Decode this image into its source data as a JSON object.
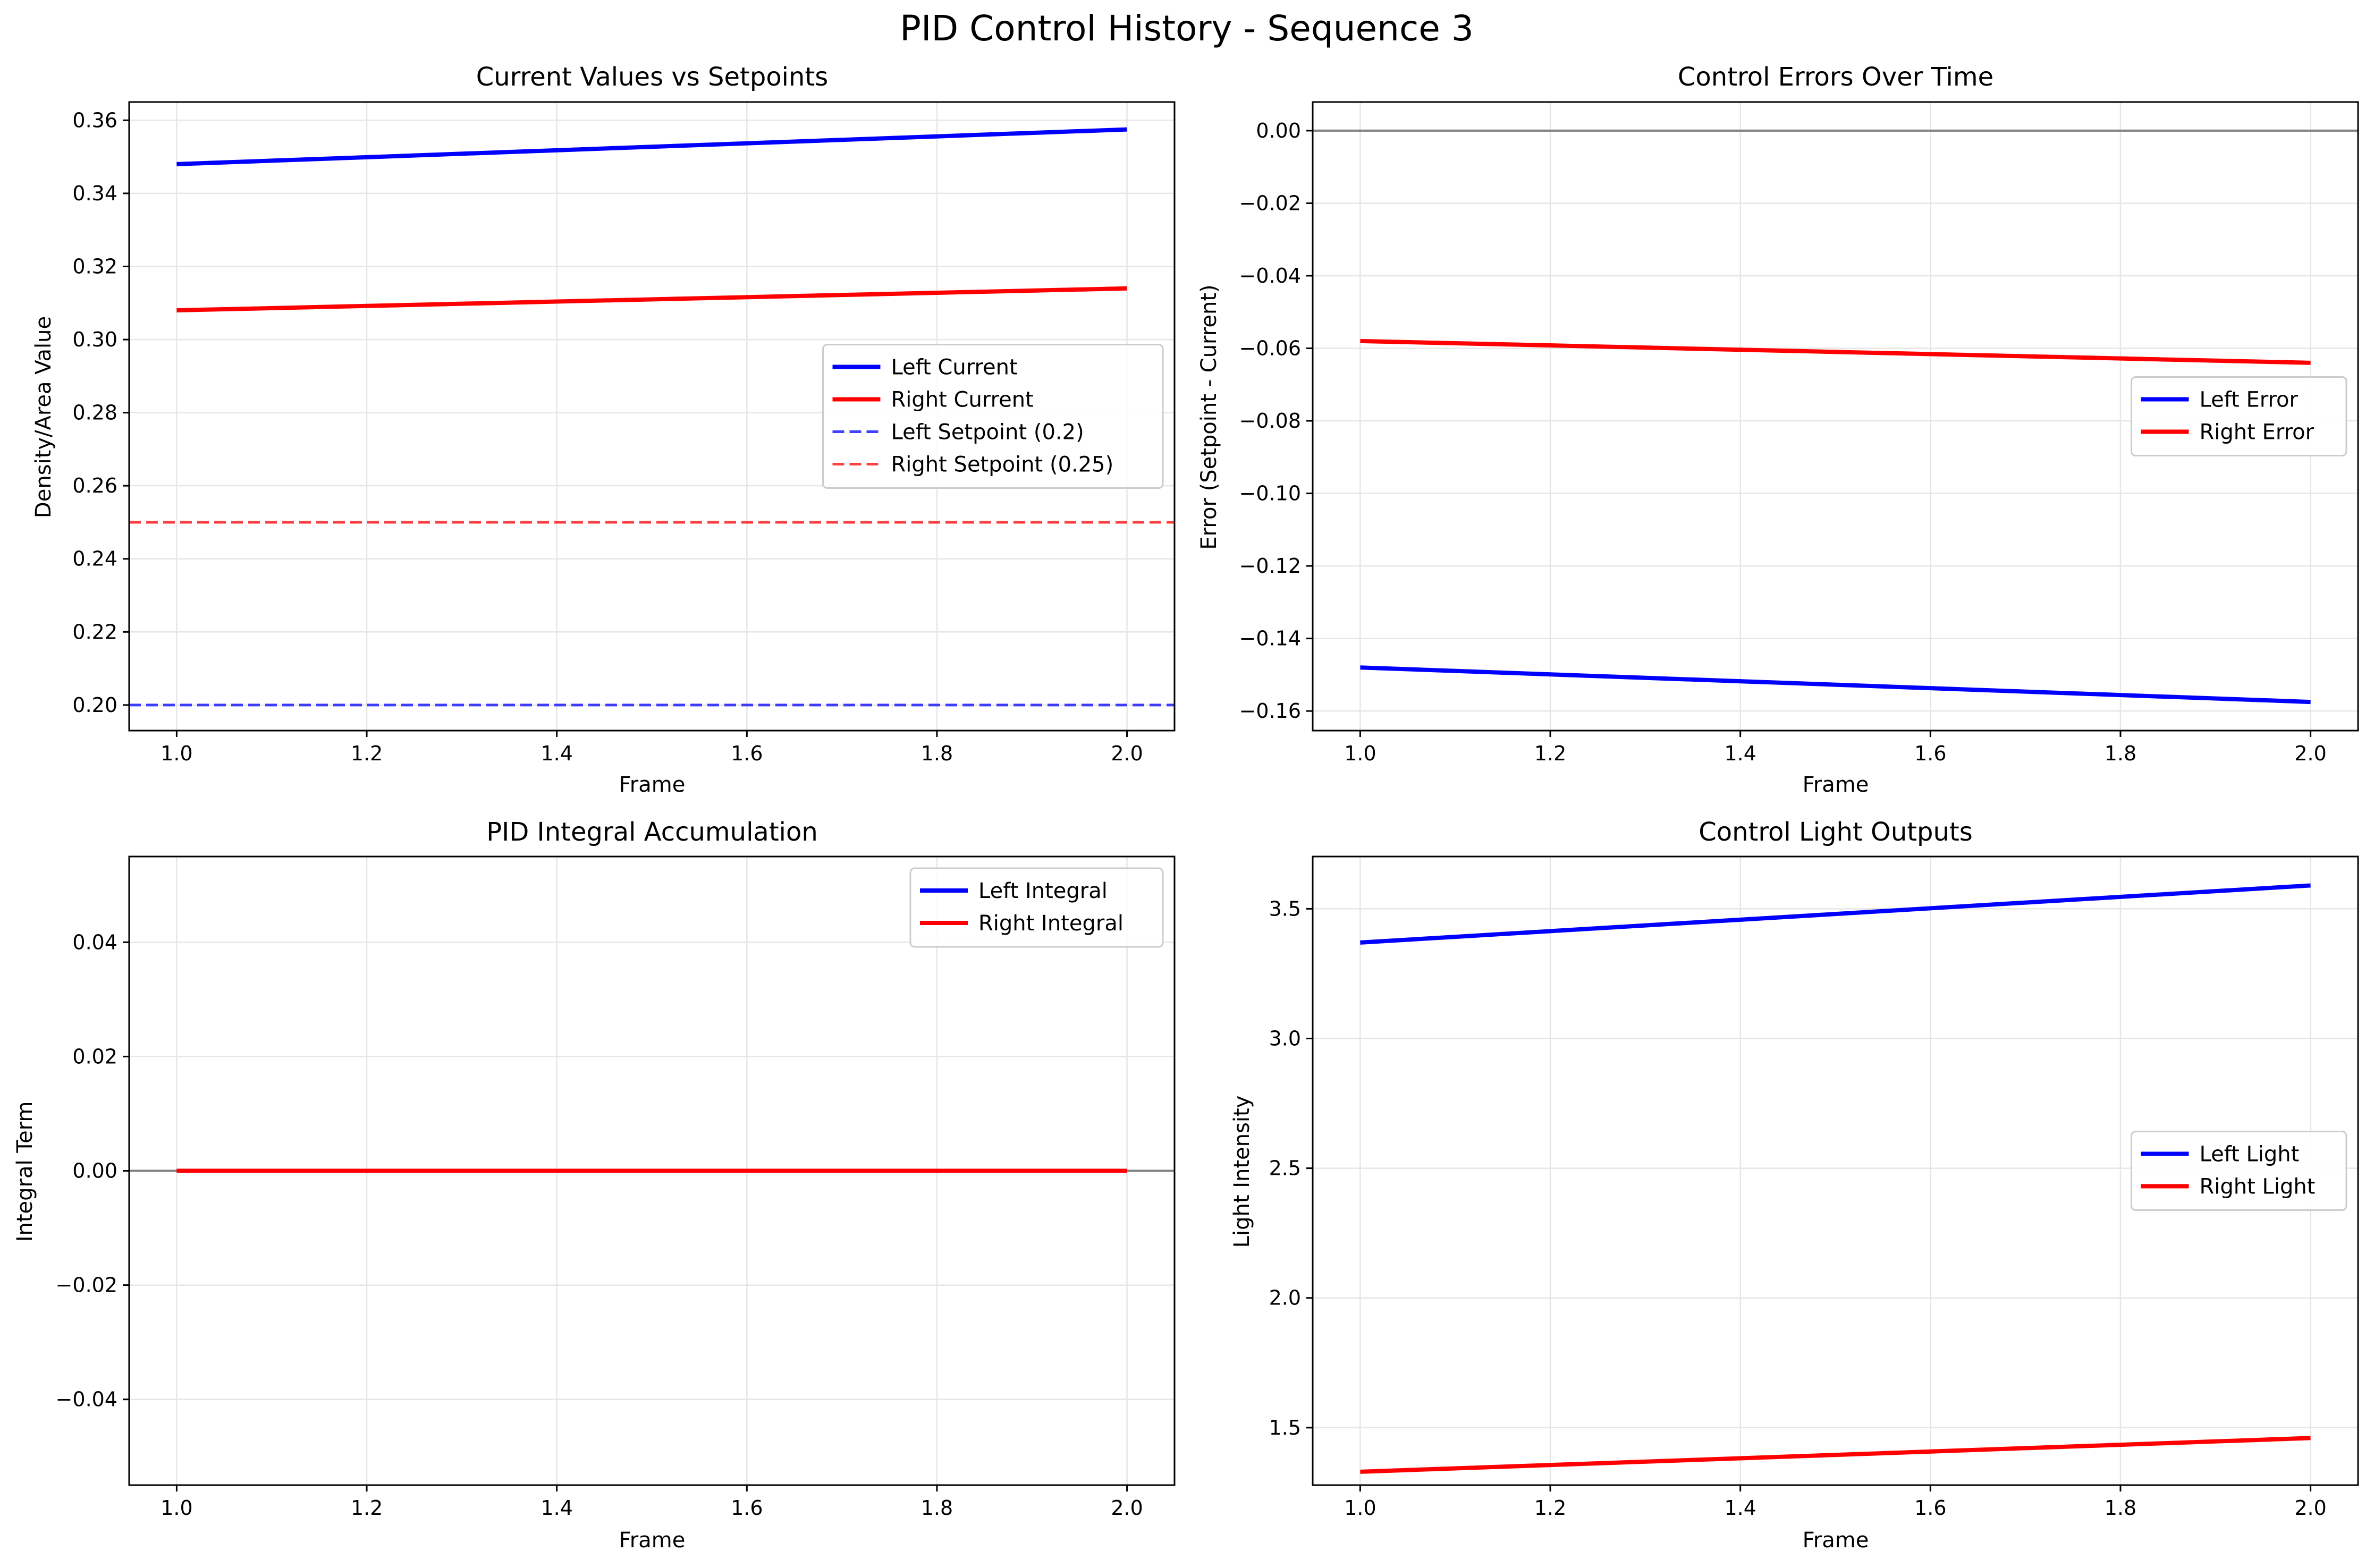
{
  "figure": {
    "title": "PID Control History - Sequence 3"
  },
  "colors": {
    "blue": "#0000ff",
    "red": "#ff0000",
    "zero_line": "#808080",
    "grid": "#e6e6e6"
  },
  "chart_data": [
    {
      "type": "line",
      "title": "Current Values vs Setpoints",
      "xlabel": "Frame",
      "ylabel": "Density/Area Value",
      "xlim": [
        0.95,
        2.05
      ],
      "ylim": [
        0.193,
        0.365
      ],
      "xticks": [
        1.0,
        1.2,
        1.4,
        1.6,
        1.8,
        2.0
      ],
      "yticks": [
        0.2,
        0.22,
        0.24,
        0.26,
        0.28,
        0.3,
        0.32,
        0.34,
        0.36
      ],
      "tick_decimals": [
        1,
        2
      ],
      "grid": true,
      "legend": "center-right",
      "series": [
        {
          "name": "Left Current",
          "color": "#0000ff",
          "style": "solid",
          "x": [
            1.0,
            2.0
          ],
          "y": [
            0.348,
            0.3575
          ]
        },
        {
          "name": "Right Current",
          "color": "#ff0000",
          "style": "solid",
          "x": [
            1.0,
            2.0
          ],
          "y": [
            0.308,
            0.314
          ]
        },
        {
          "name": "Left Setpoint (0.2)",
          "color": "#0000ff",
          "style": "dashed",
          "y_const": 0.2
        },
        {
          "name": "Right Setpoint (0.25)",
          "color": "#ff0000",
          "style": "dashed",
          "y_const": 0.25
        }
      ]
    },
    {
      "type": "line",
      "title": "Control Errors Over Time",
      "xlabel": "Frame",
      "ylabel": "Error (Setpoint - Current)",
      "xlim": [
        0.95,
        2.05
      ],
      "ylim": [
        -0.1654,
        0.0079
      ],
      "xticks": [
        1.0,
        1.2,
        1.4,
        1.6,
        1.8,
        2.0
      ],
      "yticks": [
        0.0,
        -0.02,
        -0.04,
        -0.06,
        -0.08,
        -0.1,
        -0.12,
        -0.14,
        -0.16
      ],
      "tick_decimals": [
        1,
        2
      ],
      "grid": true,
      "zero_line": true,
      "legend": "center-right",
      "series": [
        {
          "name": "Left Error",
          "color": "#0000ff",
          "style": "solid",
          "x": [
            1.0,
            2.0
          ],
          "y": [
            -0.148,
            -0.1575
          ]
        },
        {
          "name": "Right Error",
          "color": "#ff0000",
          "style": "solid",
          "x": [
            1.0,
            2.0
          ],
          "y": [
            -0.058,
            -0.064
          ]
        }
      ]
    },
    {
      "type": "line",
      "title": "PID Integral Accumulation",
      "xlabel": "Frame",
      "ylabel": "Integral Term",
      "xlim": [
        0.95,
        2.05
      ],
      "ylim": [
        -0.055,
        0.055
      ],
      "xticks": [
        1.0,
        1.2,
        1.4,
        1.6,
        1.8,
        2.0
      ],
      "yticks": [
        -0.04,
        -0.02,
        0.0,
        0.02,
        0.04
      ],
      "tick_decimals": [
        1,
        2
      ],
      "grid": true,
      "zero_line": true,
      "legend": "top-right",
      "series": [
        {
          "name": "Left Integral",
          "color": "#0000ff",
          "style": "solid",
          "x": [
            1.0,
            2.0
          ],
          "y": [
            0.0,
            0.0
          ]
        },
        {
          "name": "Right Integral",
          "color": "#ff0000",
          "style": "solid",
          "x": [
            1.0,
            2.0
          ],
          "y": [
            0.0,
            0.0
          ]
        }
      ]
    },
    {
      "type": "line",
      "title": "Control Light Outputs",
      "xlabel": "Frame",
      "ylabel": "Light Intensity",
      "xlim": [
        0.95,
        2.05
      ],
      "ylim": [
        1.2785,
        3.7015
      ],
      "xticks": [
        1.0,
        1.2,
        1.4,
        1.6,
        1.8,
        2.0
      ],
      "yticks": [
        1.5,
        2.0,
        2.5,
        3.0,
        3.5
      ],
      "tick_decimals": [
        1,
        1
      ],
      "grid": true,
      "legend": "center-right",
      "series": [
        {
          "name": "Left Light",
          "color": "#0000ff",
          "style": "solid",
          "x": [
            1.0,
            2.0
          ],
          "y": [
            3.37,
            3.59
          ]
        },
        {
          "name": "Right Light",
          "color": "#ff0000",
          "style": "solid",
          "x": [
            1.0,
            2.0
          ],
          "y": [
            1.33,
            1.46
          ]
        }
      ]
    }
  ]
}
